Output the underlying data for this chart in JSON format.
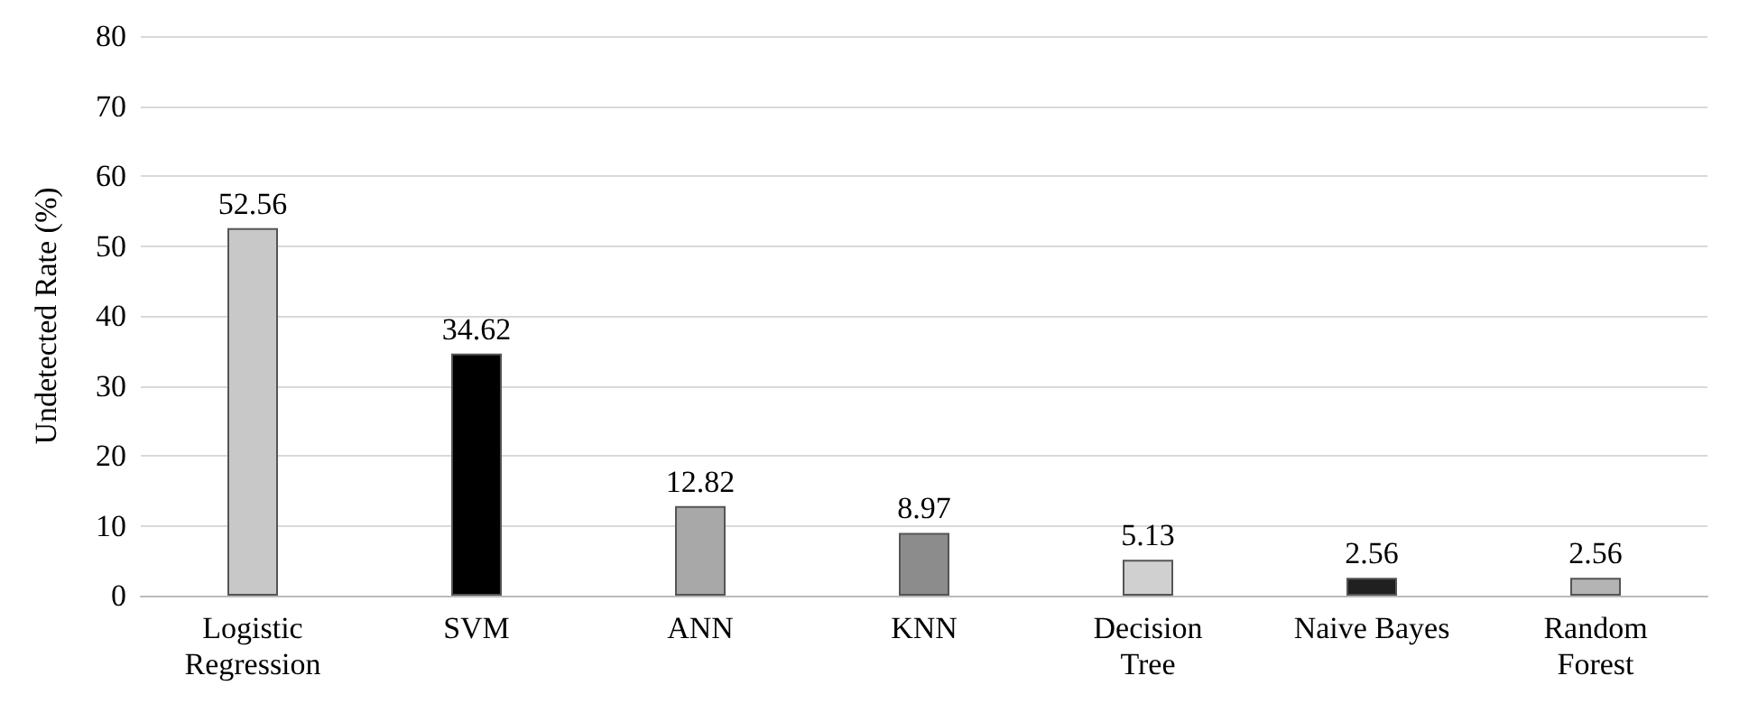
{
  "chart_data": {
    "type": "bar",
    "ylabel": "Undetected Rate (%)",
    "categories": [
      "Logistic\nRegression",
      "SVM",
      "ANN",
      "KNN",
      "Decision\nTree",
      "Naive Bayes",
      "Random\nForest"
    ],
    "values": [
      52.56,
      34.62,
      12.82,
      8.97,
      5.13,
      2.56,
      2.56
    ],
    "colors": [
      "#c8c8c8",
      "#000000",
      "#a8a8a8",
      "#8c8c8c",
      "#d0d0d0",
      "#202020",
      "#b4b4b4"
    ],
    "ylim": [
      0,
      80
    ],
    "yticks": [
      0,
      10,
      20,
      30,
      40,
      50,
      60,
      70,
      80
    ],
    "grid": "y",
    "data_labels": true
  }
}
